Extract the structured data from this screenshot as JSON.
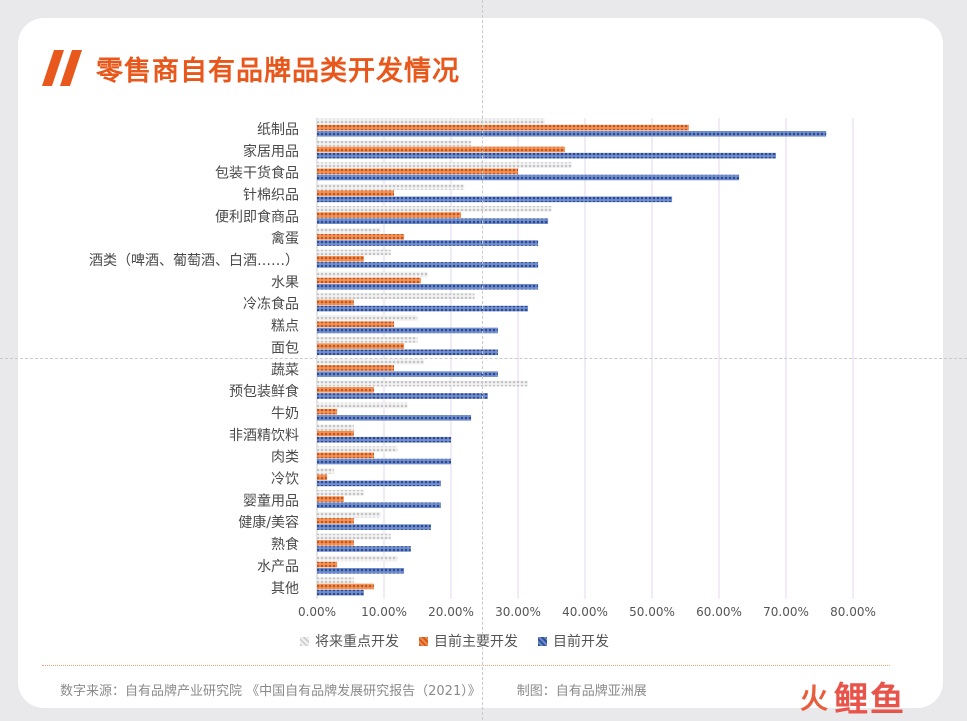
{
  "title": "零售商自有品牌品类开发情况",
  "footer": {
    "source": "数字来源：自有品牌产业研究院 《中国自有品牌发展研究报告（2021）》",
    "credit": "制图：自有品牌亚洲展"
  },
  "logo": {
    "mark": "火",
    "text": "鲤鱼"
  },
  "colors": {
    "accent": "#e8581c",
    "future": "#cfcfcf",
    "major": "#d25a1a",
    "current": "#2f4f96"
  },
  "chart_data": {
    "type": "bar",
    "orientation": "horizontal",
    "categories": [
      "纸制品",
      "家居用品",
      "包装干货食品",
      "针棉织品",
      "便利即食商品",
      "禽蛋",
      "酒类（啤酒、葡萄酒、白酒……）",
      "水果",
      "冷冻食品",
      "糕点",
      "面包",
      "蔬菜",
      "预包装鲜食",
      "牛奶",
      "非酒精饮料",
      "肉类",
      "冷饮",
      "婴童用品",
      "健康/美容",
      "熟食",
      "水产品",
      "其他"
    ],
    "series": [
      {
        "name": "将来重点开发",
        "values": [
          34,
          23,
          38,
          22,
          35,
          9.5,
          11,
          16.5,
          23.5,
          15,
          15,
          16,
          31.5,
          13.5,
          5.5,
          12,
          2.5,
          7,
          9.5,
          11,
          12,
          5.5
        ]
      },
      {
        "name": "目前主要开发",
        "values": [
          55.5,
          37,
          30,
          11.5,
          21.5,
          13,
          7,
          15.5,
          5.5,
          11.5,
          13,
          11.5,
          8.5,
          3,
          5.5,
          8.5,
          1.5,
          4,
          5.5,
          5.5,
          3,
          8.5
        ]
      },
      {
        "name": "目前开发",
        "values": [
          76,
          68.5,
          63,
          53,
          34.5,
          33,
          33,
          33,
          31.5,
          27,
          27,
          27,
          25.5,
          23,
          20,
          20,
          18.5,
          18.5,
          17,
          14,
          13,
          7
        ]
      }
    ],
    "xlim": [
      0,
      80
    ],
    "xticks": [
      "0.00%",
      "10.00%",
      "20.00%",
      "30.00%",
      "40.00%",
      "50.00%",
      "60.00%",
      "70.00%",
      "80.00%"
    ],
    "grid": true,
    "legend_position": "bottom"
  }
}
